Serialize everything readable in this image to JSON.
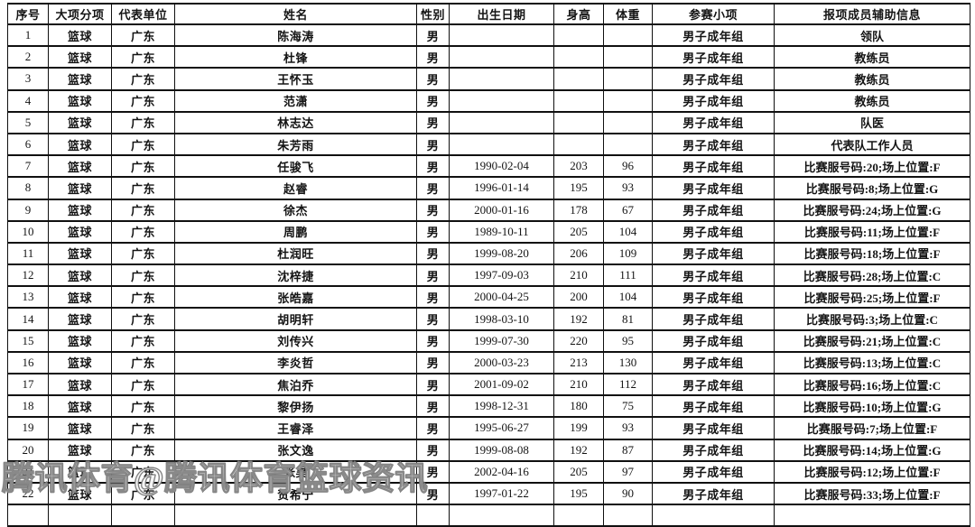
{
  "table": {
    "columns": [
      "序号",
      "大项分项",
      "代表单位",
      "姓名",
      "性别",
      "出生日期",
      "身高",
      "体重",
      "参赛小项",
      "报项成员辅助信息"
    ],
    "rows": [
      [
        "1",
        "篮球",
        "广东",
        "陈海涛",
        "男",
        "",
        "",
        "",
        "男子成年组",
        "领队"
      ],
      [
        "2",
        "篮球",
        "广东",
        "杜锋",
        "男",
        "",
        "",
        "",
        "男子成年组",
        "教练员"
      ],
      [
        "3",
        "篮球",
        "广东",
        "王怀玉",
        "男",
        "",
        "",
        "",
        "男子成年组",
        "教练员"
      ],
      [
        "4",
        "篮球",
        "广东",
        "范潇",
        "男",
        "",
        "",
        "",
        "男子成年组",
        "教练员"
      ],
      [
        "5",
        "篮球",
        "广东",
        "林志达",
        "男",
        "",
        "",
        "",
        "男子成年组",
        "队医"
      ],
      [
        "6",
        "篮球",
        "广东",
        "朱芳雨",
        "男",
        "",
        "",
        "",
        "男子成年组",
        "代表队工作人员"
      ],
      [
        "7",
        "篮球",
        "广东",
        "任骏飞",
        "男",
        "1990-02-04",
        "203",
        "96",
        "男子成年组",
        "比赛服号码:20;场上位置:F"
      ],
      [
        "8",
        "篮球",
        "广东",
        "赵睿",
        "男",
        "1996-01-14",
        "195",
        "93",
        "男子成年组",
        "比赛服号码:8;场上位置:G"
      ],
      [
        "9",
        "篮球",
        "广东",
        "徐杰",
        "男",
        "2000-01-16",
        "178",
        "67",
        "男子成年组",
        "比赛服号码:24;场上位置:G"
      ],
      [
        "10",
        "篮球",
        "广东",
        "周鹏",
        "男",
        "1989-10-11",
        "205",
        "104",
        "男子成年组",
        "比赛服号码:11;场上位置:F"
      ],
      [
        "11",
        "篮球",
        "广东",
        "杜润旺",
        "男",
        "1999-08-20",
        "206",
        "109",
        "男子成年组",
        "比赛服号码:18;场上位置:F"
      ],
      [
        "12",
        "篮球",
        "广东",
        "沈梓捷",
        "男",
        "1997-09-03",
        "210",
        "111",
        "男子成年组",
        "比赛服号码:28;场上位置:C"
      ],
      [
        "13",
        "篮球",
        "广东",
        "张皓嘉",
        "男",
        "2000-04-25",
        "200",
        "104",
        "男子成年组",
        "比赛服号码:25;场上位置:F"
      ],
      [
        "14",
        "篮球",
        "广东",
        "胡明轩",
        "男",
        "1998-03-10",
        "192",
        "81",
        "男子成年组",
        "比赛服号码:3;场上位置:C"
      ],
      [
        "15",
        "篮球",
        "广东",
        "刘传兴",
        "男",
        "1999-07-30",
        "220",
        "95",
        "男子成年组",
        "比赛服号码:21;场上位置:C"
      ],
      [
        "16",
        "篮球",
        "广东",
        "李炎哲",
        "男",
        "2000-03-23",
        "213",
        "130",
        "男子成年组",
        "比赛服号码:13;场上位置:C"
      ],
      [
        "17",
        "篮球",
        "广东",
        "焦泊乔",
        "男",
        "2001-09-02",
        "210",
        "112",
        "男子成年组",
        "比赛服号码:16;场上位置:C"
      ],
      [
        "18",
        "篮球",
        "广东",
        "黎伊扬",
        "男",
        "1998-12-31",
        "180",
        "75",
        "男子成年组",
        "比赛服号码:10;场上位置:G"
      ],
      [
        "19",
        "篮球",
        "广东",
        "王睿泽",
        "男",
        "1995-06-27",
        "199",
        "93",
        "男子成年组",
        "比赛服号码:7;场上位置:F"
      ],
      [
        "20",
        "篮球",
        "广东",
        "张文逸",
        "男",
        "1999-08-08",
        "192",
        "87",
        "男子成年组",
        "比赛服号码:14;场上位置:G"
      ],
      [
        "21",
        "篮球",
        "广东",
        "张昊",
        "男",
        "2002-04-16",
        "205",
        "97",
        "男子成年组",
        "比赛服号码:12;场上位置:F"
      ],
      [
        "22",
        "篮球",
        "广东",
        "贺希宁",
        "男",
        "1997-01-22",
        "195",
        "90",
        "男子成年组",
        "比赛服号码:33;场上位置:F"
      ]
    ]
  },
  "watermark": {
    "text": "腾讯体育@腾讯体育篮球资讯"
  },
  "colors": {
    "border": "#101010",
    "text": "#141414",
    "background": "#ffffff",
    "watermark_fill": "#ffffff",
    "watermark_outline": "#6e6e6e"
  }
}
